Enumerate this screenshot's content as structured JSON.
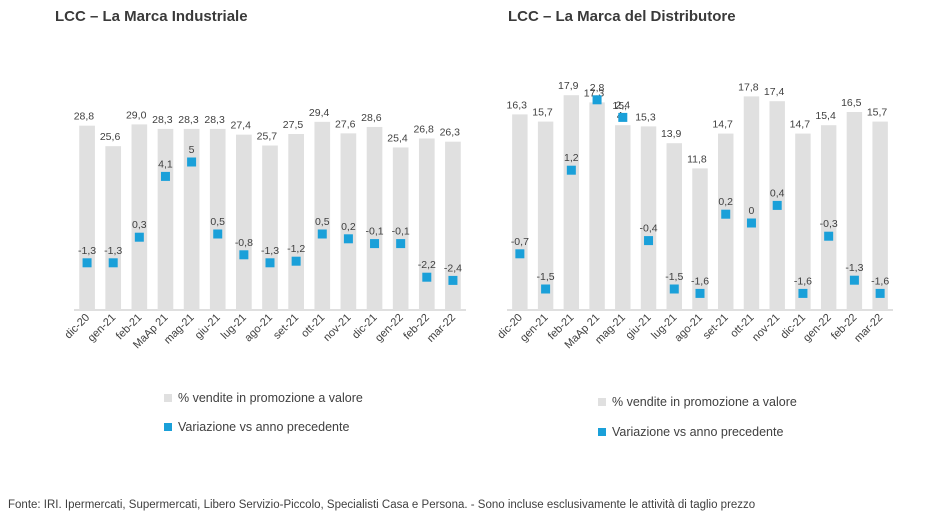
{
  "chart_data": [
    {
      "type": "bar",
      "title": "LCC – La Marca Industriale",
      "categories": [
        "dic-20",
        "gen-21",
        "feb-21",
        "MaAp 21",
        "mag-21",
        "giu-21",
        "lug-21",
        "ago-21",
        "set-21",
        "ott-21",
        "nov-21",
        "dic-21",
        "gen-22",
        "feb-22",
        "mar-22"
      ],
      "series": [
        {
          "name": "% vendite in promozione a valore",
          "kind": "bar",
          "color": "#e0e0e0",
          "values": [
            28.8,
            25.6,
            29.0,
            28.3,
            28.3,
            28.3,
            27.4,
            25.7,
            27.5,
            29.4,
            27.6,
            28.6,
            25.4,
            26.8,
            26.3
          ],
          "labels": [
            "28,8",
            "25,6",
            "29,0",
            "28,3",
            "28,3",
            "28,3",
            "27,4",
            "25,7",
            "27,5",
            "29,4",
            "27,6",
            "28,6",
            "25,4",
            "26,8",
            "26,3"
          ]
        },
        {
          "name": "Variazione vs anno precedente",
          "kind": "marker",
          "color": "#1aa0d9",
          "values": [
            -1.3,
            -1.3,
            0.3,
            4.1,
            5,
            0.5,
            -0.8,
            -1.3,
            -1.2,
            0.5,
            0.2,
            -0.1,
            -0.1,
            -2.2,
            -2.4
          ],
          "labels": [
            "-1,3",
            "-1,3",
            "0,3",
            "4,1",
            "5",
            "0,5",
            "-0,8",
            "-1,3",
            "-1,2",
            "0,5",
            "0,2",
            "-0,1",
            "-0,1",
            "-2,2",
            "-2,4"
          ]
        }
      ],
      "legend_position": "bottom"
    },
    {
      "type": "bar",
      "title": "LCC – La Marca del Distributore",
      "categories": [
        "dic-20",
        "gen-21",
        "feb-21",
        "MaAp 21",
        "mag-21",
        "giu-21",
        "lug-21",
        "ago-21",
        "set-21",
        "ott-21",
        "nov-21",
        "dic-21",
        "gen-22",
        "feb-22",
        "mar-22"
      ],
      "series": [
        {
          "name": "% vendite in promozione a valore",
          "kind": "bar",
          "color": "#e0e0e0",
          "values": [
            16.3,
            15.7,
            17.9,
            17.3,
            15.4,
            15.3,
            13.9,
            11.8,
            14.7,
            17.8,
            17.4,
            14.7,
            15.4,
            16.5,
            15.7
          ],
          "labels": [
            "16,3",
            "15,7",
            "17,9",
            "17,3",
            "15,\n4",
            "15,3",
            "13,9",
            "11,8",
            "14,7",
            "17,8",
            "17,4",
            "14,7",
            "15,4",
            "16,5",
            "15,7"
          ]
        },
        {
          "name": "Variazione vs anno precedente",
          "kind": "marker",
          "color": "#1aa0d9",
          "values": [
            -0.7,
            -1.5,
            1.2,
            2.8,
            2.4,
            -0.4,
            -1.5,
            -1.6,
            0.2,
            0,
            0.4,
            -1.6,
            -0.3,
            -1.3,
            -1.6
          ],
          "labels": [
            "-0,7",
            "-1,5",
            "1,2",
            "2,8",
            "2,4",
            "-0,4",
            "-1,5",
            "-1,6",
            "0,2",
            "0",
            "0,4",
            "-1,6",
            "-0,3",
            "-1,3",
            "-1,6"
          ]
        }
      ],
      "legend_position": "bottom"
    }
  ],
  "legend": {
    "bar_label": "% vendite in promozione a valore",
    "marker_label": "Variazione vs anno precedente"
  },
  "footnote": "Fonte: IRI. Ipermercati, Supermercati, Libero Servizio-Piccolo, Specialisti Casa e Persona. - Sono incluse esclusivamente le attività di taglio prezzo"
}
